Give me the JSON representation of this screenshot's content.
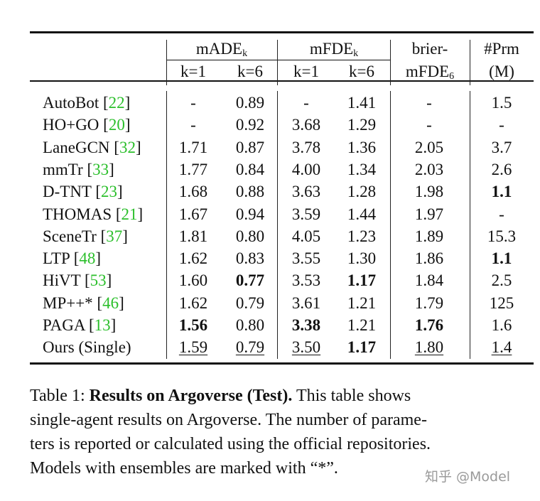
{
  "table": {
    "header": {
      "group1": "mADE",
      "group1_sub": "k",
      "group2": "mFDE",
      "group2_sub": "k",
      "col5_line1": "brier-",
      "col5_line2": "mFDE",
      "col5_sub": "6",
      "col6_line1": "#Prm",
      "col6_line2": "(M)",
      "sub_cols": [
        "k=1",
        "k=6",
        "k=1",
        "k=6"
      ]
    },
    "rows": [
      {
        "name": "AutoBot",
        "ref": "22",
        "cells": [
          {
            "v": "-"
          },
          {
            "v": "0.89"
          },
          {
            "v": "-"
          },
          {
            "v": "1.41"
          },
          {
            "v": "-"
          },
          {
            "v": "1.5"
          }
        ]
      },
      {
        "name": "HO+GO",
        "ref": "20",
        "cells": [
          {
            "v": "-"
          },
          {
            "v": "0.92"
          },
          {
            "v": "3.68"
          },
          {
            "v": "1.29"
          },
          {
            "v": "-"
          },
          {
            "v": "-"
          }
        ]
      },
      {
        "name": "LaneGCN",
        "ref": "32",
        "cells": [
          {
            "v": "1.71"
          },
          {
            "v": "0.87"
          },
          {
            "v": "3.78"
          },
          {
            "v": "1.36"
          },
          {
            "v": "2.05"
          },
          {
            "v": "3.7"
          }
        ]
      },
      {
        "name": "mmTr",
        "ref": "33",
        "cells": [
          {
            "v": "1.77"
          },
          {
            "v": "0.84"
          },
          {
            "v": "4.00"
          },
          {
            "v": "1.34"
          },
          {
            "v": "2.03"
          },
          {
            "v": "2.6"
          }
        ]
      },
      {
        "name": "D-TNT",
        "ref": "23",
        "cells": [
          {
            "v": "1.68"
          },
          {
            "v": "0.88"
          },
          {
            "v": "3.63"
          },
          {
            "v": "1.28"
          },
          {
            "v": "1.98"
          },
          {
            "v": "1.1",
            "bold": true
          }
        ]
      },
      {
        "name": "THOMAS",
        "ref": "21",
        "cells": [
          {
            "v": "1.67"
          },
          {
            "v": "0.94"
          },
          {
            "v": "3.59"
          },
          {
            "v": "1.44"
          },
          {
            "v": "1.97"
          },
          {
            "v": "-"
          }
        ]
      },
      {
        "name": "SceneTr",
        "ref": "37",
        "cells": [
          {
            "v": "1.81"
          },
          {
            "v": "0.80"
          },
          {
            "v": "4.05"
          },
          {
            "v": "1.23"
          },
          {
            "v": "1.89"
          },
          {
            "v": "15.3"
          }
        ]
      },
      {
        "name": "LTP",
        "ref": "48",
        "cells": [
          {
            "v": "1.62"
          },
          {
            "v": "0.83"
          },
          {
            "v": "3.55"
          },
          {
            "v": "1.30"
          },
          {
            "v": "1.86"
          },
          {
            "v": "1.1",
            "bold": true
          }
        ]
      },
      {
        "name": "HiVT",
        "ref": "53",
        "cells": [
          {
            "v": "1.60"
          },
          {
            "v": "0.77",
            "bold": true
          },
          {
            "v": "3.53"
          },
          {
            "v": "1.17",
            "bold": true
          },
          {
            "v": "1.84"
          },
          {
            "v": "2.5"
          }
        ]
      },
      {
        "name": "MP++*",
        "ref": "46",
        "cells": [
          {
            "v": "1.62"
          },
          {
            "v": "0.79"
          },
          {
            "v": "3.61"
          },
          {
            "v": "1.21"
          },
          {
            "v": "1.79"
          },
          {
            "v": "125"
          }
        ]
      },
      {
        "name": "PAGA",
        "ref": "13",
        "cells": [
          {
            "v": "1.56",
            "bold": true
          },
          {
            "v": "0.80"
          },
          {
            "v": "3.38",
            "bold": true
          },
          {
            "v": "1.21"
          },
          {
            "v": "1.76",
            "bold": true
          },
          {
            "v": "1.6"
          }
        ]
      },
      {
        "name": "Ours (Single)",
        "ref": "",
        "cells": [
          {
            "v": "1.59",
            "underline": true
          },
          {
            "v": "0.79",
            "underline": true
          },
          {
            "v": "3.50",
            "underline": true
          },
          {
            "v": "1.17",
            "bold": true
          },
          {
            "v": "1.80",
            "underline": true
          },
          {
            "v": "1.4",
            "underline": true
          }
        ]
      }
    ],
    "ref_color": "#2bbf2b"
  },
  "caption": {
    "label": "Table 1:",
    "title": "Results on Argoverse (Test).",
    "lines": [
      " This table shows",
      "single-agent results on Argoverse. The number of parame-",
      "ters is reported or calculated using the official repositories.",
      "Models with ensembles are marked with “*”."
    ]
  },
  "watermark": "知乎 @Model"
}
